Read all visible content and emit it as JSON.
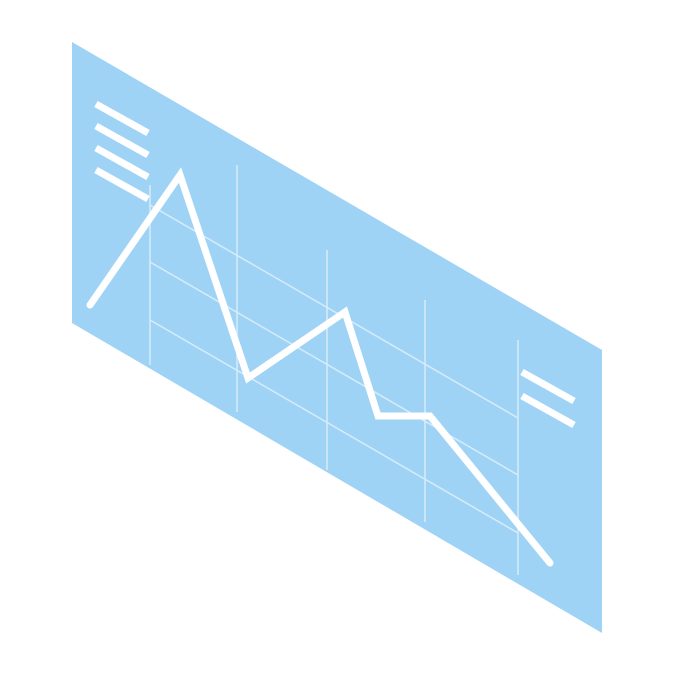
{
  "illustration": {
    "subject": "isometric-line-chart-panel-icon",
    "colors": {
      "background": "#ffffff",
      "panel": "#9fd3f5",
      "line": "#ffffff",
      "grid": "#d6ecfa"
    }
  }
}
